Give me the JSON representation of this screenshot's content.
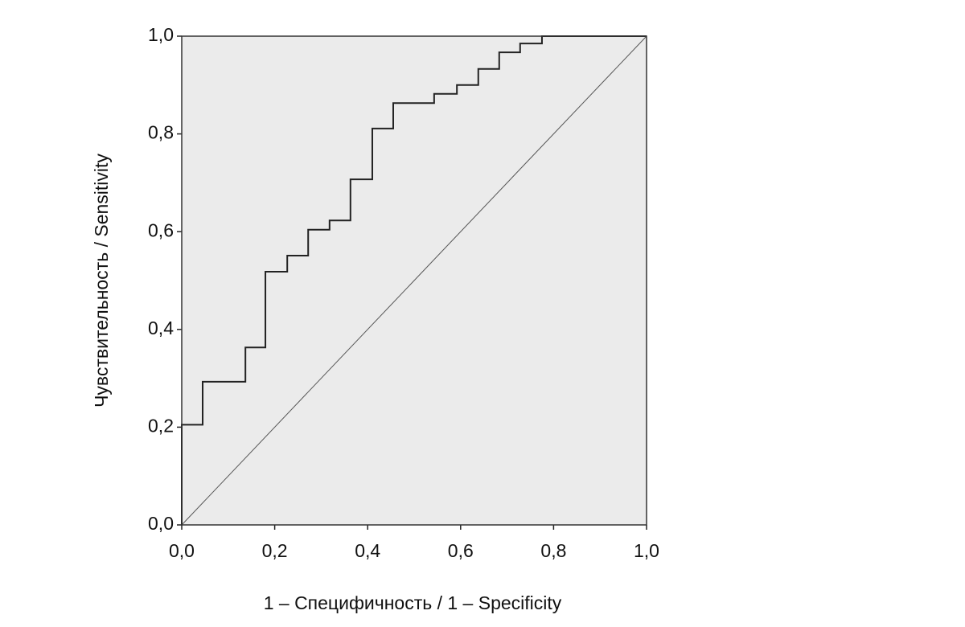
{
  "chart_data": {
    "type": "line",
    "x_label": "1 – Специфичность / 1 – Specificity",
    "y_label": "Чувствительность / Sensitivity",
    "xlim": [
      0,
      1
    ],
    "ylim": [
      0,
      1
    ],
    "xticks": [
      {
        "value": 0,
        "label": "0,0"
      },
      {
        "value": 0.2,
        "label": "0,2"
      },
      {
        "value": 0.4,
        "label": "0,4"
      },
      {
        "value": 0.6,
        "label": "0,6"
      },
      {
        "value": 0.8,
        "label": "0,8"
      },
      {
        "value": 1,
        "label": "1,0"
      }
    ],
    "yticks": [
      {
        "value": 0,
        "label": "0,0"
      },
      {
        "value": 0.2,
        "label": "0,2"
      },
      {
        "value": 0.4,
        "label": "0,4"
      },
      {
        "value": 0.6,
        "label": "0,6"
      },
      {
        "value": 0.8,
        "label": "0,8"
      },
      {
        "value": 1,
        "label": "1,0"
      }
    ],
    "background": "#ebebeb",
    "series": [
      {
        "color": "#222222",
        "width": 2,
        "x": [
          0,
          0,
          0.045,
          0.045,
          0.137,
          0.137,
          0.18,
          0.18,
          0.227,
          0.227,
          0.272,
          0.272,
          0.318,
          0.318,
          0.363,
          0.363,
          0.41,
          0.41,
          0.455,
          0.455,
          0.543,
          0.543,
          0.592,
          0.592,
          0.638,
          0.638,
          0.683,
          0.683,
          0.728,
          0.728,
          0.775,
          0.775,
          1
        ],
        "values": [
          0,
          0.205,
          0.205,
          0.293,
          0.293,
          0.363,
          0.363,
          0.518,
          0.518,
          0.551,
          0.551,
          0.604,
          0.604,
          0.623,
          0.623,
          0.707,
          0.707,
          0.811,
          0.811,
          0.863,
          0.863,
          0.882,
          0.882,
          0.9,
          0.9,
          0.933,
          0.933,
          0.967,
          0.967,
          0.985,
          0.985,
          1,
          1
        ]
      },
      {
        "color": "#555555",
        "width": 1,
        "x": [
          0,
          1
        ],
        "values": [
          0,
          1
        ]
      }
    ]
  }
}
